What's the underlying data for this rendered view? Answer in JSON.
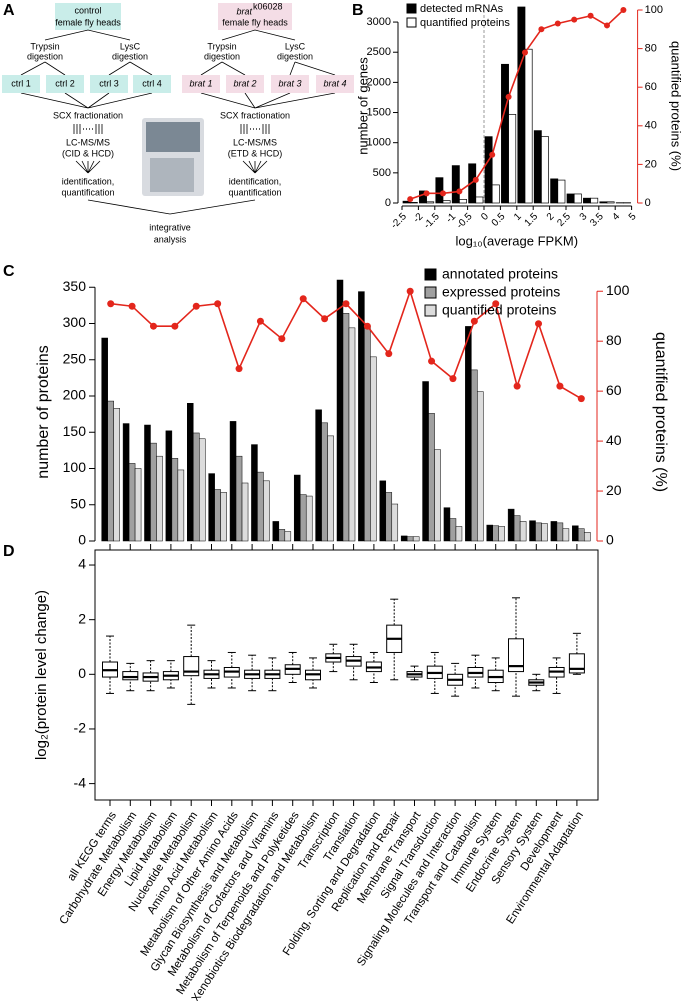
{
  "panel_labels": [
    "A",
    "B",
    "C",
    "D"
  ],
  "diagram": {
    "control": [
      "control",
      "female fly heads"
    ],
    "mutant": [
      "brat",
      "k06028",
      "female fly heads"
    ],
    "digestion": [
      [
        "Trypsin",
        "digestion"
      ],
      [
        "LysC",
        "digestion"
      ],
      [
        "Trypsin",
        "digestion"
      ],
      [
        "LysC",
        "digestion"
      ]
    ],
    "samples_control": [
      "ctrl 1",
      "ctrl 2",
      "ctrl 3",
      "ctrl 4"
    ],
    "samples_mutant": [
      "brat 1",
      "brat 2",
      "brat 3",
      "brat 4"
    ],
    "workflow_left": [
      "SCX fractionation",
      "LC-MS/MS",
      "(CID & HCD)",
      "identification,",
      "quantification"
    ],
    "workflow_right": [
      "SCX fractionation",
      "LC-MS/MS",
      "(ETD & HCD)",
      "identification,",
      "quantification"
    ],
    "integration": [
      "integrative",
      "analysis"
    ]
  },
  "chart_data": [
    {
      "type": "histogram",
      "xlabel": "log₁₀(average FPKM)",
      "ylabel": "number of genes",
      "y2label": "quantified proteins (%)",
      "bins": [
        -2.5,
        -2,
        -1.5,
        -1,
        -0.5,
        0,
        0.5,
        1,
        1.5,
        2,
        2.5,
        3,
        3.5,
        4,
        5
      ],
      "series": [
        {
          "name": "detected mRNAs",
          "color": "#000000",
          "values": [
            30,
            200,
            420,
            620,
            650,
            1100,
            2300,
            3250,
            1200,
            400,
            150,
            80,
            20,
            5
          ]
        },
        {
          "name": "quantified proteins",
          "color": "#ffffff",
          "values": [
            10,
            20,
            40,
            60,
            100,
            300,
            1470,
            2550,
            1100,
            380,
            150,
            80,
            20,
            5
          ]
        }
      ],
      "y2_values": [
        2,
        5,
        5,
        6,
        12,
        25,
        55,
        78,
        90,
        93,
        95,
        97,
        92,
        100
      ],
      "y2_color": "#e3261c",
      "ylim": [
        0,
        3200
      ],
      "yticks": [
        0,
        500,
        1000,
        1500,
        2000,
        2500,
        3000
      ],
      "y2lim": [
        0,
        100
      ],
      "y2ticks": [
        0,
        20,
        40,
        60,
        80,
        100
      ],
      "reference_line": 0,
      "legend": "upper-left"
    },
    {
      "type": "bar",
      "ylabel": "number of proteins",
      "y2label": "quantified proteins (%)",
      "series": [
        {
          "name": "annotated proteins",
          "color": "#000000",
          "values": [
            null,
            280,
            162,
            160,
            152,
            190,
            93,
            165,
            133,
            27,
            91,
            181,
            360,
            344,
            83,
            7,
            220,
            46,
            296,
            22,
            44,
            28,
            27,
            21
          ]
        },
        {
          "name": "expressed proteins",
          "color": "#a0a0a0",
          "values": [
            null,
            193,
            107,
            135,
            114,
            149,
            71,
            117,
            95,
            16,
            64,
            163,
            314,
            296,
            67,
            6,
            176,
            31,
            236,
            21,
            35,
            25,
            25,
            17
          ]
        },
        {
          "name": "quantified proteins",
          "color": "#dcdcdc",
          "values": [
            null,
            183,
            100,
            117,
            98,
            141,
            67,
            80,
            83,
            13,
            62,
            145,
            294,
            254,
            51,
            6,
            126,
            20,
            206,
            20,
            27,
            24,
            17,
            12
          ]
        }
      ],
      "y2_values": [
        null,
        95,
        94,
        86,
        86,
        94,
        95,
        69,
        88,
        81,
        97,
        89,
        95,
        86,
        75,
        100,
        72,
        65,
        88,
        95,
        62,
        87,
        62,
        57
      ],
      "y2_color": "#e3261c",
      "ylim": [
        0,
        360
      ],
      "yticks": [
        0,
        50,
        100,
        150,
        200,
        250,
        300,
        350
      ],
      "y2lim": [
        0,
        104.5
      ],
      "y2ticks": [
        0,
        20,
        40,
        60,
        80,
        100
      ],
      "legend": "upper-right"
    },
    {
      "type": "box",
      "ylabel": "log₂(protein level change)",
      "categories": [
        "all KEGG terms",
        "Carbohydrate Metabolism",
        "Energy Metabolism",
        "Lipid Metabolism",
        "Nucleotide Metabolism",
        "Amino Acid Metabolism",
        "Metabolism of Other Amino Acids",
        "Glycan Biosynthesis and Metabolism",
        "Metabolism of Cofactors and Vitamins",
        "Metabolism of Terpenoids and Polyketides",
        "Xenobiotics Biodegradation and Metabolism",
        "Transcription",
        "Translation",
        "Folding, Sorting and Degradation",
        "Replication and Repair",
        "Membrane Transport",
        "Signal Transduction",
        "Signaling Molecules and Interaction",
        "Transport and Catabolism",
        "Immune System",
        "Endocrine System",
        "Sensory System",
        "Development",
        "Environmental Adaptation"
      ],
      "boxes": [
        {
          "whislo": -0.7,
          "q1": -0.1,
          "med": 0.15,
          "q3": 0.45,
          "whishi": 1.4
        },
        {
          "whislo": -0.6,
          "q1": -0.2,
          "med": -0.1,
          "q3": 0.1,
          "whishi": 0.4
        },
        {
          "whislo": -0.6,
          "q1": -0.25,
          "med": -0.1,
          "q3": 0.05,
          "whishi": 0.5
        },
        {
          "whislo": -0.5,
          "q1": -0.2,
          "med": -0.05,
          "q3": 0.1,
          "whishi": 0.5
        },
        {
          "whislo": -1.1,
          "q1": -0.05,
          "med": 0.1,
          "q3": 0.65,
          "whishi": 1.8
        },
        {
          "whislo": -0.5,
          "q1": -0.15,
          "med": 0,
          "q3": 0.15,
          "whishi": 0.5
        },
        {
          "whislo": -0.5,
          "q1": -0.1,
          "med": 0.1,
          "q3": 0.25,
          "whishi": 0.8
        },
        {
          "whislo": -0.6,
          "q1": -0.15,
          "med": 0,
          "q3": 0.15,
          "whishi": 0.7
        },
        {
          "whislo": -0.6,
          "q1": -0.15,
          "med": 0,
          "q3": 0.15,
          "whishi": 0.6
        },
        {
          "whislo": -0.3,
          "q1": 0,
          "med": 0.2,
          "q3": 0.35,
          "whishi": 0.8
        },
        {
          "whislo": -0.5,
          "q1": -0.2,
          "med": 0,
          "q3": 0.15,
          "whishi": 0.6
        },
        {
          "whislo": 0.1,
          "q1": 0.45,
          "med": 0.6,
          "q3": 0.75,
          "whishi": 1.1
        },
        {
          "whislo": -0.2,
          "q1": 0.3,
          "med": 0.5,
          "q3": 0.65,
          "whishi": 1.1
        },
        {
          "whislo": -0.3,
          "q1": 0.1,
          "med": 0.25,
          "q3": 0.45,
          "whishi": 0.8
        },
        {
          "whislo": -0.2,
          "q1": 0.8,
          "med": 1.3,
          "q3": 1.8,
          "whishi": 2.75
        },
        {
          "whislo": -0.2,
          "q1": -0.1,
          "med": 0,
          "q3": 0.1,
          "whishi": 0.3
        },
        {
          "whislo": -0.7,
          "q1": -0.15,
          "med": 0.05,
          "q3": 0.3,
          "whishi": 0.8
        },
        {
          "whislo": -0.8,
          "q1": -0.4,
          "med": -0.2,
          "q3": 0,
          "whishi": 0.4
        },
        {
          "whislo": -0.5,
          "q1": -0.1,
          "med": 0.05,
          "q3": 0.25,
          "whishi": 0.7
        },
        {
          "whislo": -0.6,
          "q1": -0.3,
          "med": -0.1,
          "q3": 0.15,
          "whishi": 0.6
        },
        {
          "whislo": -0.8,
          "q1": 0.1,
          "med": 0.3,
          "q3": 1.3,
          "whishi": 2.8
        },
        {
          "whislo": -0.6,
          "q1": -0.4,
          "med": -0.3,
          "q3": -0.2,
          "whishi": 0
        },
        {
          "whislo": -0.7,
          "q1": -0.1,
          "med": 0.1,
          "q3": 0.25,
          "whishi": 0.6
        },
        {
          "whislo": 0,
          "q1": 0.05,
          "med": 0.2,
          "q3": 0.75,
          "whishi": 1.5
        }
      ],
      "ylim": [
        -4.6,
        4.55
      ],
      "yticks": [
        -4,
        -2,
        0,
        2,
        4
      ]
    }
  ]
}
